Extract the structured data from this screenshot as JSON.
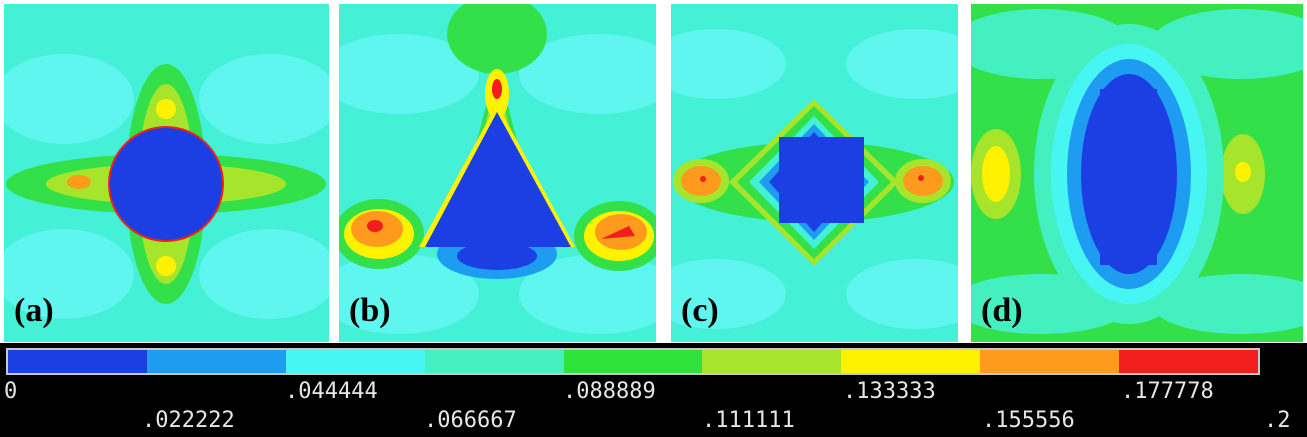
{
  "panels": [
    {
      "id": "a",
      "label": "(a)",
      "shape": "circle"
    },
    {
      "id": "b",
      "label": "(b)",
      "shape": "triangle"
    },
    {
      "id": "c",
      "label": "(c)",
      "shape": "square"
    },
    {
      "id": "d",
      "label": "(d)",
      "shape": "rectangle"
    }
  ],
  "legend": {
    "colors": [
      "#1c3fe3",
      "#1e9cf2",
      "#47f6f2",
      "#44f0c0",
      "#2fe23c",
      "#a6e52c",
      "#fff200",
      "#ff9b1c",
      "#f21e1e"
    ],
    "ticks": [
      "0",
      ".022222",
      ".044444",
      ".066667",
      ".088889",
      ".111111",
      ".133333",
      ".155556",
      ".177778",
      ".2"
    ]
  }
}
